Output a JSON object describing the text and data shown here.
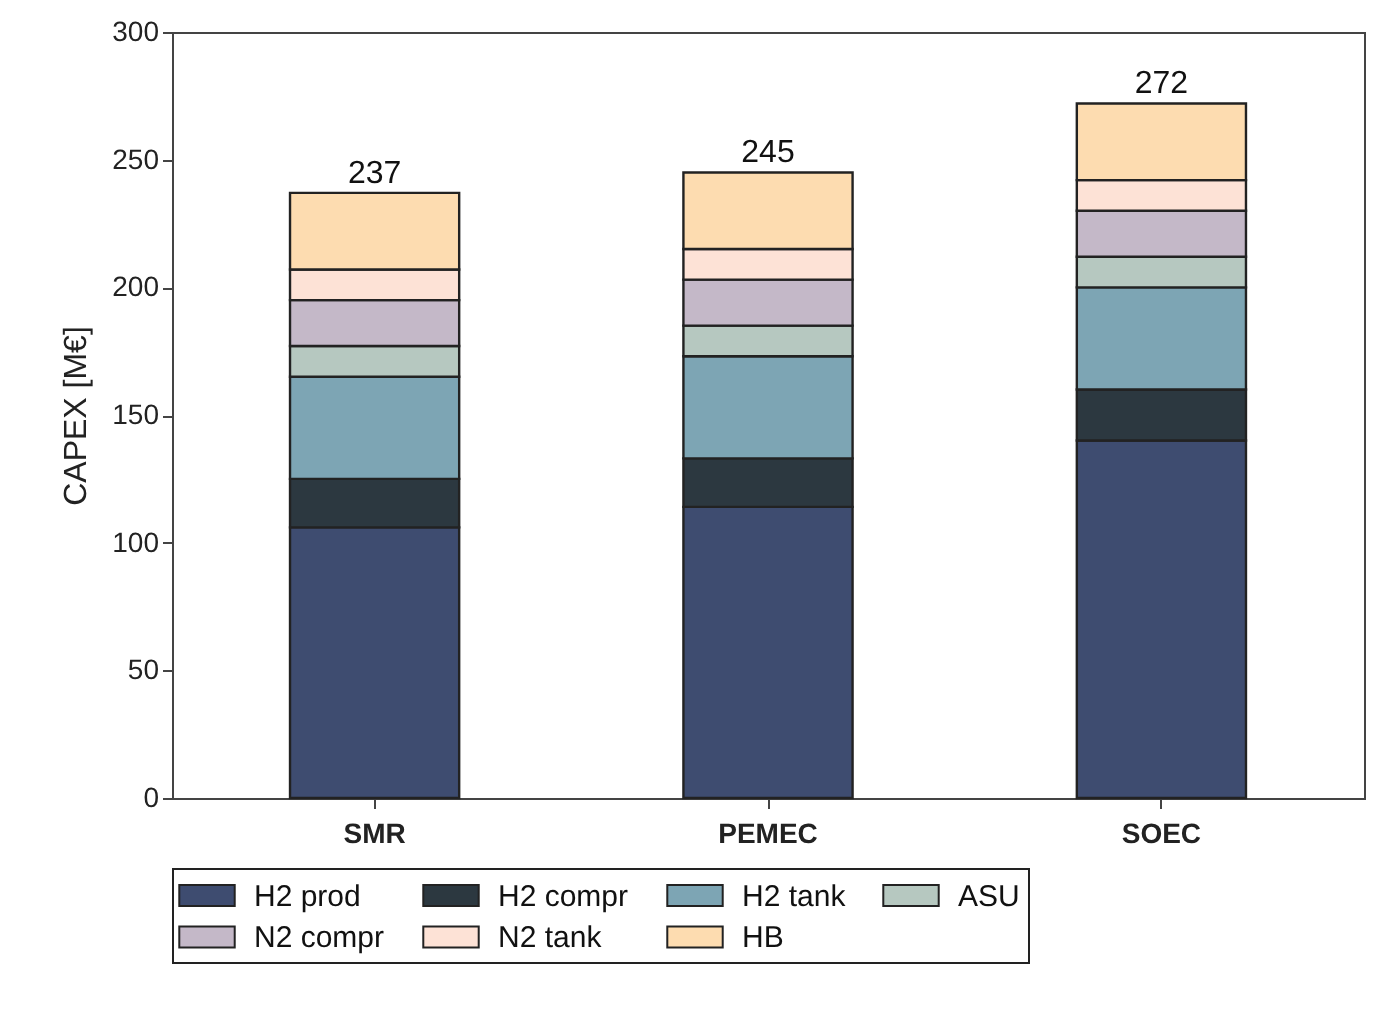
{
  "chart_data": {
    "type": "bar",
    "stacked": true,
    "ylabel": "CAPEX [M€]",
    "categories": [
      "SMR",
      "PEMEC",
      "SOEC"
    ],
    "ylim": [
      0,
      300
    ],
    "yticks": [
      0,
      50,
      100,
      150,
      200,
      250,
      300
    ],
    "grid": false,
    "legend": "bottom",
    "totals": [
      "237",
      "245",
      "272"
    ],
    "series": [
      {
        "name": "H2 prod",
        "color": "#3e4c70",
        "values": [
          106,
          114,
          140
        ]
      },
      {
        "name": "H2 compr",
        "color": "#2c3840",
        "values": [
          19,
          19,
          20
        ]
      },
      {
        "name": "H2 tank",
        "color": "#7da5b4",
        "values": [
          40,
          40,
          40
        ]
      },
      {
        "name": "ASU",
        "color": "#b6c8c0",
        "values": [
          12,
          12,
          12
        ]
      },
      {
        "name": "N2 compr",
        "color": "#c4b8c8",
        "values": [
          18,
          18,
          18
        ]
      },
      {
        "name": "N2 tank",
        "color": "#fde2d6",
        "values": [
          12,
          12,
          12
        ]
      },
      {
        "name": "HB",
        "color": "#fddcb0",
        "values": [
          30,
          30,
          30
        ]
      }
    ]
  }
}
